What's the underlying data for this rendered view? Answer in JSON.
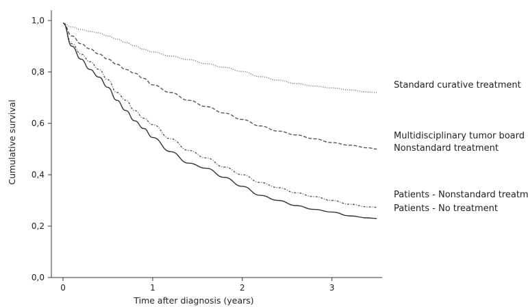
{
  "chart_data": {
    "type": "line",
    "xlabel": "Time after diagnosis (years)",
    "ylabel": "Cumulative survival",
    "xlim": [
      -0.13,
      3.56
    ],
    "ylim": [
      0.0,
      1.0
    ],
    "x_ticks": [
      0,
      1,
      2,
      3
    ],
    "x_tick_labels": [
      "0",
      "1",
      "2",
      "3"
    ],
    "y_ticks": [
      0.0,
      0.2,
      0.4,
      0.6,
      0.8,
      1.0
    ],
    "y_tick_labels": [
      "0,0",
      "0,2",
      "0,4",
      "0,6",
      "0,8",
      "1,0"
    ],
    "grid": false,
    "legend": "labels at right end of lines",
    "series": [
      {
        "name": "Standard curative treatment",
        "line_style": "dotted",
        "color": "#7a7a7a",
        "x": [
          0,
          0.1,
          0.2,
          0.3,
          0.4,
          0.5,
          0.6,
          0.7,
          0.8,
          0.9,
          1.0,
          1.2,
          1.4,
          1.6,
          1.8,
          2.0,
          2.2,
          2.4,
          2.6,
          2.8,
          3.0,
          3.2,
          3.4,
          3.5
        ],
        "y": [
          0.99,
          0.975,
          0.965,
          0.958,
          0.952,
          0.94,
          0.928,
          0.915,
          0.902,
          0.888,
          0.878,
          0.862,
          0.848,
          0.832,
          0.818,
          0.802,
          0.782,
          0.768,
          0.755,
          0.745,
          0.738,
          0.73,
          0.722,
          0.72
        ]
      },
      {
        "name": "Multidisciplinary tumor board - Nonstandard treatment",
        "label_lines": [
          "Multidisciplinary tumor board -",
          "Nonstandard treatment"
        ],
        "line_style": "dashed",
        "color": "#555555",
        "x": [
          0,
          0.1,
          0.2,
          0.3,
          0.4,
          0.5,
          0.6,
          0.7,
          0.8,
          0.9,
          1.0,
          1.2,
          1.4,
          1.6,
          1.8,
          2.0,
          2.2,
          2.4,
          2.6,
          2.8,
          3.0,
          3.2,
          3.4,
          3.5
        ],
        "y": [
          0.99,
          0.94,
          0.91,
          0.89,
          0.87,
          0.85,
          0.83,
          0.81,
          0.795,
          0.775,
          0.75,
          0.72,
          0.69,
          0.665,
          0.64,
          0.615,
          0.59,
          0.57,
          0.555,
          0.54,
          0.525,
          0.515,
          0.505,
          0.5
        ]
      },
      {
        "name": "Patients - Nonstandard treatment",
        "line_style": "dash-dot",
        "color": "#555555",
        "x": [
          0,
          0.1,
          0.2,
          0.3,
          0.4,
          0.5,
          0.6,
          0.7,
          0.8,
          0.9,
          1.0,
          1.2,
          1.4,
          1.6,
          1.8,
          2.0,
          2.2,
          2.4,
          2.6,
          2.8,
          3.0,
          3.2,
          3.4,
          3.5
        ],
        "y": [
          0.99,
          0.91,
          0.87,
          0.84,
          0.81,
          0.77,
          0.72,
          0.69,
          0.65,
          0.62,
          0.595,
          0.54,
          0.495,
          0.465,
          0.43,
          0.4,
          0.37,
          0.35,
          0.33,
          0.315,
          0.3,
          0.285,
          0.275,
          0.273
        ]
      },
      {
        "name": "Patients - No treatment",
        "line_style": "solid",
        "color": "#333333",
        "x": [
          0,
          0.1,
          0.2,
          0.3,
          0.4,
          0.5,
          0.6,
          0.7,
          0.8,
          0.9,
          1.0,
          1.2,
          1.4,
          1.6,
          1.8,
          2.0,
          2.2,
          2.4,
          2.6,
          2.8,
          3.0,
          3.2,
          3.4,
          3.5
        ],
        "y": [
          0.99,
          0.9,
          0.85,
          0.81,
          0.78,
          0.74,
          0.69,
          0.65,
          0.61,
          0.58,
          0.545,
          0.49,
          0.445,
          0.425,
          0.39,
          0.355,
          0.32,
          0.3,
          0.28,
          0.265,
          0.255,
          0.24,
          0.232,
          0.23
        ]
      }
    ]
  }
}
